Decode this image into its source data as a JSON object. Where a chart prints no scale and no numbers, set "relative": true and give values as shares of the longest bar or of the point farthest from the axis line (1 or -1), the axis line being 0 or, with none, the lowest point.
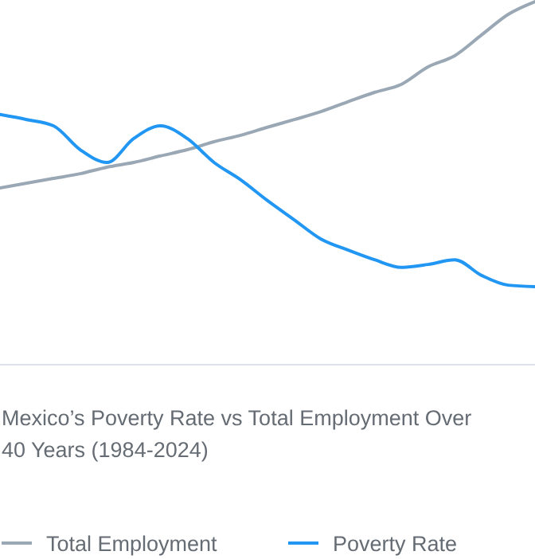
{
  "chart_data": {
    "type": "line",
    "title": "Mexico’s Poverty Rate vs Total Employment Over 40 Years (1984-2024)",
    "relative": true,
    "legend": "bottom",
    "categories": [
      null,
      null,
      null,
      null,
      null,
      null,
      null,
      null,
      null,
      null,
      null,
      null,
      null,
      null,
      null,
      null,
      null,
      null,
      null,
      null,
      null
    ],
    "series": [
      {
        "name": "Total Employment",
        "color": "#9aa7b4",
        "values": [
          0.487,
          0.5,
          0.513,
          0.526,
          0.544,
          0.557,
          0.575,
          0.592,
          0.614,
          0.632,
          0.654,
          0.675,
          0.697,
          0.724,
          0.75,
          0.772,
          0.82,
          0.851,
          0.908,
          0.965,
          1
        ]
      },
      {
        "name": "Poverty Rate",
        "color": "#2196f3",
        "values": [
          0.689,
          0.675,
          0.658,
          0.592,
          0.557,
          0.623,
          0.658,
          0.623,
          0.557,
          0.509,
          0.452,
          0.399,
          0.346,
          0.316,
          0.289,
          0.268,
          0.276,
          0.289,
          0.246,
          0.219,
          0.215
        ]
      }
    ]
  }
}
